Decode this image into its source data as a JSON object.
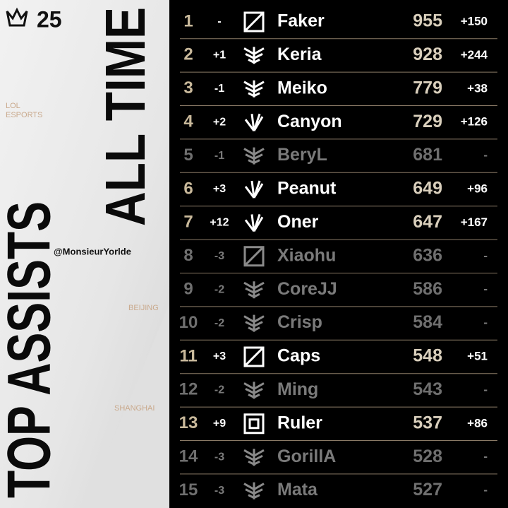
{
  "header": {
    "logo": "25",
    "title": "TOP ASSISTS",
    "subtitle": "ALL TIME",
    "credit": "@MonsieurYorlde",
    "brand": [
      "LOL",
      "ESPORTS"
    ],
    "city_1": "BEIJING",
    "city_2": "SHANGHAI"
  },
  "table": {
    "rows": [
      [
        1,
        "-",
        "Faker",
        955,
        "+150"
      ],
      [
        2,
        "+1",
        "Keria",
        928,
        "+244"
      ],
      [
        3,
        "-1",
        "Meiko",
        779,
        "+38"
      ],
      [
        4,
        "+2",
        "Canyon",
        729,
        "+126"
      ],
      [
        5,
        "-1",
        "BeryL",
        681,
        "-"
      ],
      [
        6,
        "+3",
        "Peanut",
        649,
        "+96"
      ],
      [
        7,
        "+12",
        "Oner",
        647,
        "+167"
      ],
      [
        8,
        "-3",
        "Xiaohu",
        636,
        "-"
      ],
      [
        9,
        "-2",
        "CoreJJ",
        586,
        "-"
      ],
      [
        10,
        "-2",
        "Crisp",
        584,
        "-"
      ],
      [
        11,
        "+3",
        "Caps",
        548,
        "+51"
      ],
      [
        12,
        "-2",
        "Ming",
        543,
        "-"
      ],
      [
        13,
        "+9",
        "Ruler",
        537,
        "+86"
      ],
      [
        14,
        "-3",
        "GorillA",
        528,
        "-"
      ],
      [
        15,
        "-3",
        "Mata",
        527,
        "-"
      ]
    ]
  }
}
